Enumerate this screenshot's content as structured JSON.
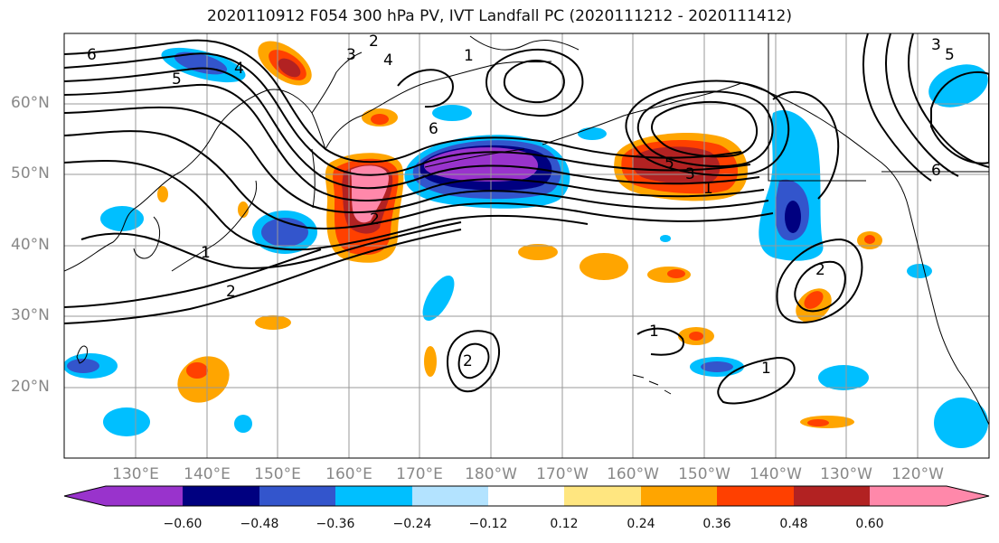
{
  "title": "2020110912 F054 300 hPa PV, IVT Landfall PC (2020111212 - 2020111412)",
  "lat_labels": [
    "60°N",
    "50°N",
    "40°N",
    "30°N",
    "20°N"
  ],
  "lon_labels": [
    "130°E",
    "140°E",
    "150°E",
    "160°E",
    "170°E",
    "180°W",
    "170°W",
    "160°W",
    "150°W",
    "140°W",
    "130°W",
    "120°W"
  ],
  "colorbar": {
    "ticks": [
      "−0.60",
      "−0.48",
      "−0.36",
      "−0.24",
      "−0.12",
      "0.12",
      "0.24",
      "0.36",
      "0.48",
      "0.60"
    ],
    "colors": [
      "#9933cc",
      "#000080",
      "#3355cc",
      "#00bfff",
      "#b3e3ff",
      "#ffffff",
      "#ffe680",
      "#ffa500",
      "#ff4000",
      "#b22222",
      "#ff88aa",
      "#ff88aa"
    ]
  },
  "contour_labels": [
    "6",
    "5",
    "4",
    "3",
    "2",
    "1",
    "1",
    "2",
    "2",
    "1",
    "1",
    "6",
    "5",
    "3",
    "2",
    "1",
    "2",
    "4",
    "3",
    "5",
    "6"
  ],
  "colors": {
    "frame": "#000000",
    "grid": "#999999",
    "coast": "#000000",
    "contour": "#000000"
  }
}
